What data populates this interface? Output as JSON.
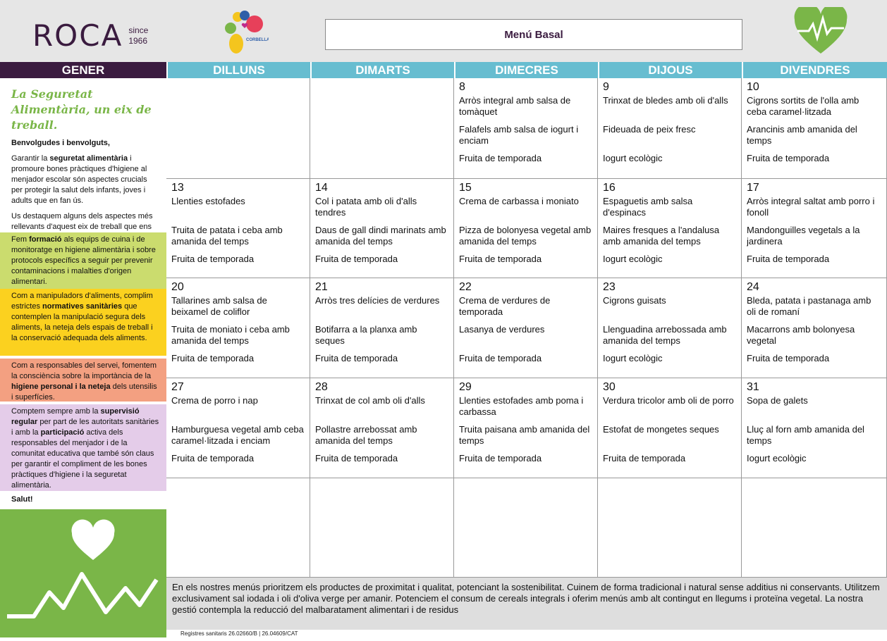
{
  "header": {
    "logo_text": "ROCA",
    "logo_since": "since",
    "logo_year": "1966",
    "school_logo_text": "CORBELLA",
    "title": "Menú Basal"
  },
  "month": "GENER",
  "days": [
    "DILLUNS",
    "DIMARTS",
    "DIMECRES",
    "DIJOUS",
    "DIVENDRES"
  ],
  "weeks": [
    [
      {
        "day": "",
        "dishes": [
          "",
          "",
          ""
        ]
      },
      {
        "day": "",
        "dishes": [
          "",
          "",
          ""
        ]
      },
      {
        "day": "8",
        "dishes": [
          "Arròs integral amb salsa de tomàquet",
          "Falafels amb salsa de iogurt i enciam",
          "Fruita de temporada"
        ]
      },
      {
        "day": "9",
        "dishes": [
          "Trinxat de bledes amb oli d'alls",
          "Fideuada de peix fresc",
          "Iogurt ecològic"
        ]
      },
      {
        "day": "10",
        "dishes": [
          "Cigrons sortits de l'olla amb ceba caramel·litzada",
          "Arancinis amb amanida del temps",
          "Fruita de temporada"
        ]
      }
    ],
    [
      {
        "day": "13",
        "dishes": [
          "Llenties estofades",
          "Truita de patata i ceba amb amanida del temps",
          "Fruita de temporada"
        ]
      },
      {
        "day": "14",
        "dishes": [
          "Col i patata amb oli d'alls tendres",
          "Daus de gall dindi marinats amb amanida del temps",
          "Fruita de temporada"
        ]
      },
      {
        "day": "15",
        "dishes": [
          "Crema de carbassa i moniato",
          "Pizza de bolonyesa vegetal amb amanida del temps",
          "Fruita de temporada"
        ]
      },
      {
        "day": "16",
        "dishes": [
          "Espaguetis amb salsa d'espinacs",
          "Maires fresques a l'andalusa amb amanida del temps",
          "Iogurt ecològic"
        ]
      },
      {
        "day": "17",
        "dishes": [
          "Arròs integral saltat amb porro i fonoll",
          "Mandonguilles vegetals a la jardinera",
          "Fruita de temporada"
        ]
      }
    ],
    [
      {
        "day": "20",
        "dishes": [
          "Tallarines amb salsa de beixamel de coliflor",
          "Truita de moniato i ceba amb amanida del temps",
          "Fruita de temporada"
        ]
      },
      {
        "day": "21",
        "dishes": [
          "Arròs tres delícies de verdures",
          "Botifarra a la planxa amb seques",
          "Fruita de temporada"
        ]
      },
      {
        "day": "22",
        "dishes": [
          "Crema de verdures de temporada",
          "Lasanya de verdures",
          "Fruita de temporada"
        ]
      },
      {
        "day": "23",
        "dishes": [
          "Cigrons guisats",
          "Llenguadina arrebossada amb amanida del temps",
          "Iogurt ecològic"
        ]
      },
      {
        "day": "24",
        "dishes": [
          "Bleda, patata i pastanaga amb oli de romaní",
          "Macarrons amb bolonyesa vegetal",
          "Fruita de temporada"
        ]
      }
    ],
    [
      {
        "day": "27",
        "dishes": [
          "Crema de porro i nap",
          "Hamburguesa vegetal amb ceba caramel·litzada i enciam",
          "Fruita de temporada"
        ]
      },
      {
        "day": "28",
        "dishes": [
          "Trinxat de col amb oli d'alls",
          "Pollastre arrebossat amb amanida del temps",
          "Fruita de temporada"
        ]
      },
      {
        "day": "29",
        "dishes": [
          "Llenties estofades amb poma i carbassa",
          "Truita paisana amb amanida del temps",
          "Fruita de temporada"
        ]
      },
      {
        "day": "30",
        "dishes": [
          "Verdura tricolor amb oli de porro",
          "Estofat de mongetes seques",
          "Fruita de temporada"
        ]
      },
      {
        "day": "31",
        "dishes": [
          "Sopa de galets",
          "Lluç al forn amb amanida del temps",
          "Iogurt ecològic"
        ]
      }
    ],
    [
      {
        "day": "",
        "dishes": [
          "",
          "",
          ""
        ]
      },
      {
        "day": "",
        "dishes": [
          "",
          "",
          ""
        ]
      },
      {
        "day": "",
        "dishes": [
          "",
          "",
          ""
        ]
      },
      {
        "day": "",
        "dishes": [
          "",
          "",
          ""
        ]
      },
      {
        "day": "",
        "dishes": [
          "",
          "",
          ""
        ]
      }
    ]
  ],
  "sidebar": {
    "title": "La Seguretat Alimentària, un eix de treball.",
    "greeting": "Benvolgudes i benvolguts,",
    "p1": [
      "Garantir la ",
      "seguretat alimentària",
      " i promoure bones pràctiques d'higiene al menjador escolar són aspectes crucials per protegir la salut dels infants, joves i adults que en fan ús."
    ],
    "p2": "Us destaquem alguns dels aspectes més rellevants d'aquest eix de treball que ens acompanya dia a dia:",
    "b1": [
      "Fem ",
      "formació",
      " als equips de cuina i de monitoratge en higiene alimentària i sobre protocols específics a seguir per prevenir contaminacions i malalties d'origen alimentari."
    ],
    "b2": [
      "Com a  manipuladors d'aliments, complim estrictes ",
      "normatives sanitàries",
      " que contemplen la manipulació segura dels aliments, la neteja dels espais de treball i la conservació adequada dels aliments."
    ],
    "b3": [
      "Com a responsables del servei, fomentem la consciència sobre la importància de la ",
      "higiene personal i la neteja",
      " dels utensilis i superfícies."
    ],
    "b4": [
      "Comptem sempre amb la ",
      "supervisió regular",
      " per part de les autoritats sanitàries i amb la ",
      "participació",
      " activa dels responsables del menjador i de la comunitat educativa que també són claus per garantir el compliment de les bones pràctiques d'higiene i la seguretat alimentària."
    ],
    "closing": "Salut!"
  },
  "footer": {
    "text": "En els nostres menús prioritzem els productes de proximitat i qualitat, potenciant la sostenibilitat. Cuinem de forma tradicional i natural sense additius ni conservants. Utilitzem exclusivament sal iodada i oli d'oliva verge per amanir. Potenciem el consum de cereals integrals i oferim menús amb alt contingut en llegums i proteïna vegetal. La nostra gestió contempla la reducció del malbaratament alimentari i de residus",
    "registre": "Registres sanitaris 26.02660/B | 26.04609/CAT"
  },
  "colors": {
    "purple": "#3a1b3f",
    "blue": "#67bdd0",
    "green": "#7ab648",
    "lime": "#cbdc6e",
    "yellow": "#fbd11f",
    "salmon": "#f3a081",
    "lilac": "#e4cce9"
  }
}
